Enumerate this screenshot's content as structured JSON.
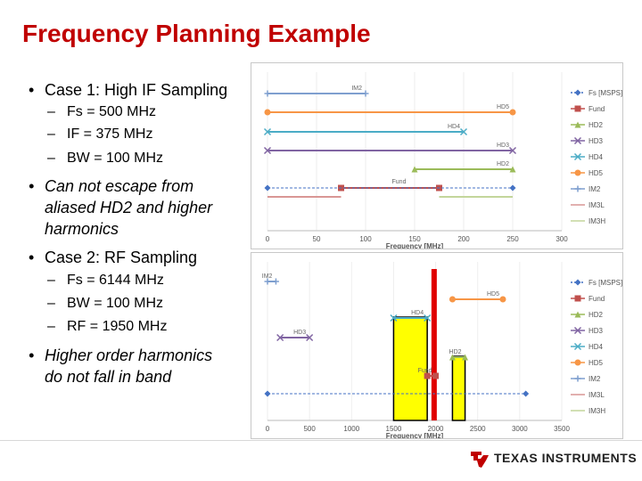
{
  "title": "Frequency Planning Example",
  "bullets": {
    "case1": "Case 1: High IF Sampling",
    "case1_items": [
      "Fs = 500 MHz",
      "IF = 375 MHz",
      "BW = 100 MHz"
    ],
    "note1": [
      "Can not escape from",
      "aliased HD2 and higher",
      "harmonics"
    ],
    "case2": "Case 2: RF Sampling",
    "case2_items": [
      "Fs = 6144 MHz",
      "BW = 100 MHz",
      "RF = 1950 MHz"
    ],
    "note2": [
      "Higher order harmonics",
      "do not fall in band"
    ]
  },
  "legend_entries": [
    "Fs [MSPS]",
    "Fund",
    "HD2",
    "HD3",
    "HD4",
    "HD5",
    "IM2",
    "IM3L",
    "IM3H"
  ],
  "colors": {
    "Fs": "#4472c4",
    "Fund": "#c0504d",
    "HD2": "#9bbb59",
    "HD3": "#8064a2",
    "HD4": "#4bacc6",
    "HD5": "#f79646",
    "IM2": "#7f9fcf",
    "IM3L": "#d99694",
    "IM3H": "#c3d69b",
    "title": "#c00000",
    "highlight": "#ffff00",
    "bar": "#e00000"
  },
  "chart_data": [
    {
      "type": "line",
      "xlabel": "Frequency [MHz]",
      "xlim": [
        0,
        300
      ],
      "xticks": [
        "0",
        "50",
        "100",
        "150",
        "200",
        "250",
        "300"
      ],
      "series": [
        {
          "name": "IM2",
          "segments": [
            [
              0,
              100
            ]
          ],
          "label": "IM2"
        },
        {
          "name": "HD5",
          "segments": [
            [
              0,
              250
            ]
          ],
          "label": "HD5"
        },
        {
          "name": "HD4",
          "segments": [
            [
              0,
              200
            ]
          ],
          "label": "HD4"
        },
        {
          "name": "HD3",
          "segments": [
            [
              0,
              250
            ]
          ],
          "label": "HD3"
        },
        {
          "name": "HD2",
          "segments": [
            [
              150,
              250
            ]
          ],
          "label": "HD2"
        },
        {
          "name": "Fund",
          "segments": [
            [
              75,
              175
            ]
          ],
          "label": "Fund"
        },
        {
          "name": "Fs",
          "segments": [
            [
              0,
              250
            ]
          ],
          "label": ""
        },
        {
          "name": "IM3L",
          "segments": [
            [
              0,
              75
            ]
          ],
          "label": ""
        },
        {
          "name": "IM3H",
          "segments": [
            [
              175,
              250
            ]
          ],
          "label": ""
        }
      ]
    },
    {
      "type": "line",
      "xlabel": "Frequency [MHz]",
      "xlim": [
        0,
        3500
      ],
      "xticks": [
        "0",
        "500",
        "1000",
        "1500",
        "2000",
        "2500",
        "3000",
        "3500"
      ],
      "series": [
        {
          "name": "IM2",
          "segments": [
            [
              0,
              100
            ]
          ],
          "label": "IM2"
        },
        {
          "name": "HD5",
          "segments": [
            [
              2200,
              2800
            ]
          ],
          "label": "HD5"
        },
        {
          "name": "HD4",
          "segments": [
            [
              1500,
              1900
            ]
          ],
          "label": "HD4"
        },
        {
          "name": "HD3",
          "segments": [
            [
              150,
              500
            ]
          ],
          "label": "HD3"
        },
        {
          "name": "HD2",
          "segments": [
            [
              2200,
              2350
            ]
          ],
          "label": "HD2"
        },
        {
          "name": "Fund",
          "segments": [
            [
              1900,
              2000
            ]
          ],
          "label": "Fund"
        },
        {
          "name": "Fs",
          "segments": [
            [
              0,
              3072
            ]
          ],
          "label": ""
        }
      ],
      "highlight_bands": [
        [
          1500,
          1900
        ],
        [
          2200,
          2350
        ]
      ],
      "signal_bar": [
        1950,
        2000
      ]
    }
  ]
}
